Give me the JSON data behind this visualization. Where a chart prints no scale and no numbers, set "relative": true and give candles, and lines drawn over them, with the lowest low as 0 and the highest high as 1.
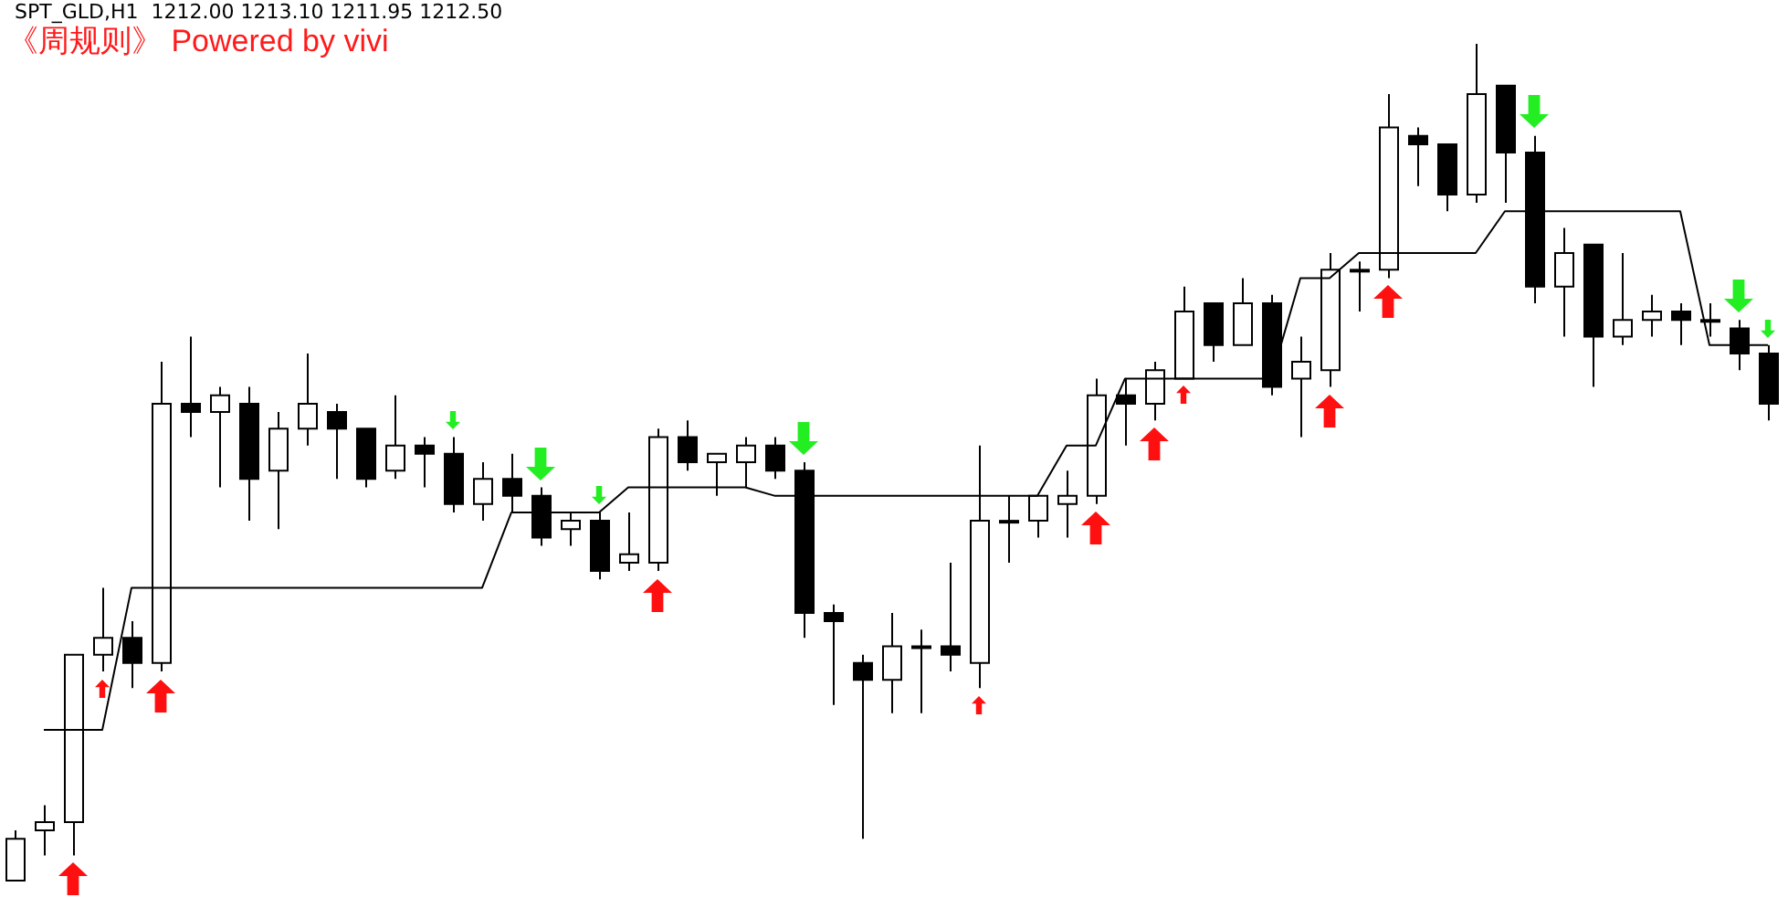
{
  "chart_data": {
    "type": "candlestick",
    "title": "SPT_GLD,H1  1212.00 1213.10 1211.95 1212.50",
    "subtitle": "《周规则》 Powered by vivi",
    "relative": true,
    "tick_labels": false,
    "categories": [
      null,
      null,
      null,
      null,
      null,
      null,
      null,
      null,
      null,
      null,
      null,
      null,
      null,
      null,
      null,
      null,
      null,
      null,
      null,
      null,
      null,
      null,
      null,
      null,
      null,
      null,
      null,
      null,
      null,
      null,
      null,
      null,
      null,
      null,
      null,
      null,
      null,
      null,
      null,
      null,
      null,
      null,
      null,
      null,
      null,
      null,
      null,
      null,
      null,
      null,
      null,
      null,
      null,
      null,
      null,
      null,
      null,
      null,
      null,
      null,
      null
    ],
    "ohlc": [
      [
        0.0,
        0.06,
        0,
        0.05
      ],
      [
        0.06,
        0.09,
        0.03,
        0.07
      ],
      [
        0.07,
        0.27,
        0.03,
        0.27
      ],
      [
        0.27,
        0.35,
        0.25,
        0.29
      ],
      [
        0.29,
        0.31,
        0.23,
        0.26
      ],
      [
        0.26,
        0.62,
        0.25,
        0.57
      ],
      [
        0.57,
        0.65,
        0.53,
        0.56
      ],
      [
        0.56,
        0.59,
        0.47,
        0.58
      ],
      [
        0.57,
        0.59,
        0.43,
        0.48
      ],
      [
        0.49,
        0.56,
        0.42,
        0.54
      ],
      [
        0.54,
        0.63,
        0.52,
        0.57
      ],
      [
        0.56,
        0.57,
        0.48,
        0.54
      ],
      [
        0.54,
        0.54,
        0.47,
        0.48
      ],
      [
        0.49,
        0.58,
        0.48,
        0.52
      ],
      [
        0.52,
        0.53,
        0.47,
        0.51
      ],
      [
        0.51,
        0.53,
        0.44,
        0.45
      ],
      [
        0.45,
        0.5,
        0.43,
        0.48
      ],
      [
        0.48,
        0.51,
        0.44,
        0.46
      ],
      [
        0.46,
        0.47,
        0.4,
        0.41
      ],
      [
        0.42,
        0.44,
        0.4,
        0.43
      ],
      [
        0.43,
        0.44,
        0.36,
        0.37
      ],
      [
        0.38,
        0.44,
        0.37,
        0.39
      ],
      [
        0.38,
        0.54,
        0.37,
        0.53
      ],
      [
        0.53,
        0.55,
        0.49,
        0.5
      ],
      [
        0.5,
        0.51,
        0.46,
        0.51
      ],
      [
        0.5,
        0.53,
        0.47,
        0.52
      ],
      [
        0.52,
        0.53,
        0.48,
        0.49
      ],
      [
        0.49,
        0.5,
        0.29,
        0.32
      ],
      [
        0.32,
        0.33,
        0.21,
        0.31
      ],
      [
        0.26,
        0.27,
        0.05,
        0.24
      ],
      [
        0.24,
        0.32,
        0.2,
        0.28
      ],
      [
        0.28,
        0.3,
        0.2,
        0.28
      ],
      [
        0.28,
        0.38,
        0.25,
        0.27
      ],
      [
        0.26,
        0.52,
        0.23,
        0.43
      ],
      [
        0.43,
        0.46,
        0.38,
        0.43
      ],
      [
        0.43,
        0.46,
        0.41,
        0.46
      ],
      [
        0.45,
        0.49,
        0.41,
        0.46
      ],
      [
        0.46,
        0.6,
        0.45,
        0.58
      ],
      [
        0.58,
        0.6,
        0.52,
        0.57
      ],
      [
        0.57,
        0.62,
        0.55,
        0.61
      ],
      [
        0.6,
        0.71,
        0.6,
        0.68
      ],
      [
        0.69,
        0.69,
        0.62,
        0.64
      ],
      [
        0.64,
        0.72,
        0.64,
        0.69
      ],
      [
        0.69,
        0.7,
        0.58,
        0.59
      ],
      [
        0.6,
        0.65,
        0.53,
        0.62
      ],
      [
        0.61,
        0.75,
        0.59,
        0.73
      ],
      [
        0.73,
        0.74,
        0.68,
        0.73
      ],
      [
        0.73,
        0.94,
        0.72,
        0.9
      ],
      [
        0.89,
        0.9,
        0.83,
        0.88
      ],
      [
        0.88,
        0.88,
        0.8,
        0.82
      ],
      [
        0.82,
        1,
        0.81,
        0.94
      ],
      [
        0.95,
        0.95,
        0.81,
        0.87
      ],
      [
        0.87,
        0.89,
        0.69,
        0.71
      ],
      [
        0.71,
        0.78,
        0.65,
        0.75
      ],
      [
        0.76,
        0.76,
        0.59,
        0.65
      ],
      [
        0.65,
        0.75,
        0.64,
        0.67
      ],
      [
        0.67,
        0.7,
        0.65,
        0.68
      ],
      [
        0.68,
        0.69,
        0.64,
        0.67
      ],
      [
        0.67,
        0.69,
        0.65,
        0.67
      ],
      [
        0.66,
        0.67,
        0.61,
        0.63
      ],
      [
        0.63,
        0.64,
        0.55,
        0.57
      ]
    ],
    "colors": [
      "#ffffff",
      "#ffffff",
      "#ffffff",
      "#ffffff",
      "#000000",
      "#ffffff",
      "#000000",
      "#ffffff",
      "#000000",
      "#ffffff",
      "#ffffff",
      "#000000",
      "#000000",
      "#ffffff",
      "#000000",
      "#000000",
      "#ffffff",
      "#000000",
      "#000000",
      "#ffffff",
      "#000000",
      "#ffffff",
      "#ffffff",
      "#000000",
      "#ffffff",
      "#ffffff",
      "#000000",
      "#000000",
      "#000000",
      "#000000",
      "#ffffff",
      "#ffffff",
      "#000000",
      "#ffffff",
      "#ffffff",
      "#ffffff",
      "#ffffff",
      "#ffffff",
      "#000000",
      "#ffffff",
      "#ffffff",
      "#000000",
      "#ffffff",
      "#000000",
      "#ffffff",
      "#ffffff",
      "#ffffff",
      "#ffffff",
      "#000000",
      "#000000",
      "#ffffff",
      "#000000",
      "#000000",
      "#ffffff",
      "#000000",
      "#ffffff",
      "#ffffff",
      "#000000",
      "#ffffff",
      "#000000",
      "#000000"
    ],
    "series": [
      {
        "type": "line",
        "color": "#000000",
        "values": [
          null,
          0.18,
          0.18,
          0.18,
          0.35,
          0.35,
          0.35,
          0.35,
          0.35,
          0.35,
          0.35,
          0.35,
          0.35,
          0.35,
          0.35,
          0.35,
          0.35,
          0.44,
          0.44,
          0.44,
          0.44,
          0.47,
          0.47,
          0.47,
          0.47,
          0.47,
          0.46,
          0.46,
          0.46,
          0.46,
          0.46,
          0.46,
          0.46,
          0.46,
          0.46,
          0.46,
          0.52,
          0.52,
          0.6,
          0.6,
          0.6,
          0.6,
          0.6,
          0.6,
          0.72,
          0.72,
          0.75,
          0.75,
          0.75,
          0.75,
          0.75,
          0.8,
          0.8,
          0.8,
          0.8,
          0.8,
          0.8,
          0.8,
          0.64,
          0.64,
          0.64
        ]
      }
    ]
  }
}
